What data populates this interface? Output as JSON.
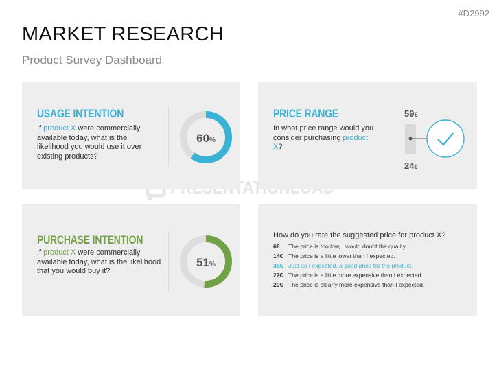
{
  "code": "#D2992",
  "title": "MARKET RESEARCH",
  "subtitle": "Product Survey Dashboard",
  "watermark": "PRESENTATIONLOAD",
  "colors": {
    "usage": "#3bb1d4",
    "purchase": "#72a046",
    "track": "#dddddd"
  },
  "usage": {
    "heading": "USAGE INTENTION",
    "q_pre": "If ",
    "q_hl": "product X",
    "q_post": " were commercially available today, what is the likelihood you would use it over existing products?",
    "value": 60,
    "value_text": "60",
    "unit": "%"
  },
  "price_range": {
    "heading": "PRICE RANGE",
    "q_pre": "In what price range would you consider purchasing ",
    "q_hl": "product X",
    "q_post": "?",
    "high": "59",
    "low": "24",
    "currency": "€",
    "check_icon": "checkmark-icon"
  },
  "purchase": {
    "heading": "PURCHASE INTENTION",
    "q_pre": "If ",
    "q_hl": "product X",
    "q_post": " were commercially available today, what is the likelihood that you would buy it?",
    "value": 51,
    "value_text": "51",
    "unit": "%"
  },
  "rating": {
    "question": "How do you rate the suggested price for product X?",
    "options": [
      {
        "value": "6€",
        "text": "The price is too low, I would doubt the quality."
      },
      {
        "value": "14€",
        "text": "The price is a little lower than I expected."
      },
      {
        "value": "38€",
        "text": "Just as I expected, a good price for the product."
      },
      {
        "value": "22€",
        "text": "The price is a little more expensive than I expected."
      },
      {
        "value": "20€",
        "text": "The price is clearly more expensive than I expected."
      }
    ]
  }
}
